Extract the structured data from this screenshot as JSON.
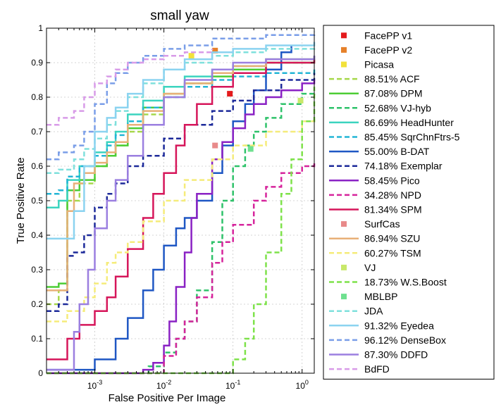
{
  "chart_data": {
    "type": "line",
    "title": "small yaw",
    "xlabel": "False Positive Per Image",
    "ylabel": "True Positive Rate",
    "xscale": "log",
    "xlim": [
      0.0002,
      1.5
    ],
    "ylim": [
      0,
      1
    ],
    "grid": true,
    "legend_position": "right",
    "x_ticks": [
      {
        "value": 0.001,
        "base": "10",
        "exp": "-3"
      },
      {
        "value": 0.01,
        "base": "10",
        "exp": "-2"
      },
      {
        "value": 0.1,
        "base": "10",
        "exp": "-1"
      },
      {
        "value": 1,
        "base": "10",
        "exp": "0"
      }
    ],
    "y_ticks": [
      {
        "value": 0,
        "label": "0"
      },
      {
        "value": 0.1,
        "label": "0.1"
      },
      {
        "value": 0.2,
        "label": "0.2"
      },
      {
        "value": 0.3,
        "label": "0.3"
      },
      {
        "value": 0.4,
        "label": "0.4"
      },
      {
        "value": 0.5,
        "label": "0.5"
      },
      {
        "value": 0.6,
        "label": "0.6"
      },
      {
        "value": 0.7,
        "label": "0.7"
      },
      {
        "value": 0.8,
        "label": "0.8"
      },
      {
        "value": 0.9,
        "label": "0.9"
      },
      {
        "value": 1,
        "label": "1"
      }
    ],
    "series": [
      {
        "name": "FacePP v1",
        "kind": "point",
        "color": "#e41a1c",
        "x": [
          0.09
        ],
        "y": [
          0.81
        ]
      },
      {
        "name": "FacePP v2",
        "kind": "point",
        "color": "#e6812a",
        "x": [
          0.055
        ],
        "y": [
          0.935
        ]
      },
      {
        "name": "Picasa",
        "kind": "point",
        "color": "#f2e13a",
        "x": [
          0.025
        ],
        "y": [
          0.92
        ]
      },
      {
        "name": "88.51% ACF",
        "kind": "line",
        "color": "#a6d84a",
        "dash": "dashed",
        "x": [
          0.0002,
          0.0003,
          0.0004,
          0.0006,
          0.001,
          0.0015,
          0.002,
          0.003,
          0.005,
          0.01,
          0.02,
          0.05,
          0.1,
          0.3,
          1.5
        ],
        "y": [
          0.2,
          0.24,
          0.5,
          0.55,
          0.6,
          0.63,
          0.66,
          0.7,
          0.75,
          0.8,
          0.84,
          0.87,
          0.89,
          0.9,
          0.91
        ]
      },
      {
        "name": "87.08% DPM",
        "kind": "line",
        "color": "#4ccd35",
        "dash": "solid",
        "x": [
          0.0002,
          0.0003,
          0.0004,
          0.0006,
          0.001,
          0.0015,
          0.002,
          0.003,
          0.005,
          0.01,
          0.02,
          0.05,
          0.1,
          0.3,
          1.5
        ],
        "y": [
          0.25,
          0.26,
          0.53,
          0.56,
          0.6,
          0.63,
          0.66,
          0.71,
          0.77,
          0.81,
          0.84,
          0.86,
          0.88,
          0.9,
          0.91
        ]
      },
      {
        "name": "52.68% VJ-hyb",
        "kind": "line",
        "color": "#2ec26a",
        "dash": "dashed",
        "x": [
          0.0002,
          0.001,
          0.003,
          0.006,
          0.01,
          0.015,
          0.02,
          0.03,
          0.05,
          0.07,
          0.1,
          0.15,
          0.2,
          0.3,
          0.5,
          1,
          1.5
        ],
        "y": [
          0,
          0,
          0,
          0.02,
          0.06,
          0.1,
          0.15,
          0.24,
          0.38,
          0.5,
          0.6,
          0.66,
          0.7,
          0.74,
          0.78,
          0.81,
          0.82
        ]
      },
      {
        "name": "86.69% HeadHunter",
        "kind": "line",
        "color": "#3bd4bf",
        "dash": "solid",
        "x": [
          0.0002,
          0.0003,
          0.0004,
          0.0006,
          0.001,
          0.0015,
          0.002,
          0.003,
          0.005,
          0.01,
          0.02,
          0.05,
          0.1,
          0.3,
          1.5
        ],
        "y": [
          0.48,
          0.5,
          0.56,
          0.6,
          0.64,
          0.67,
          0.7,
          0.75,
          0.79,
          0.83,
          0.86,
          0.88,
          0.89,
          0.91,
          0.92
        ]
      },
      {
        "name": "85.45% SqrChnFtrs-5",
        "kind": "line",
        "color": "#22b5d6",
        "dash": "dashed",
        "x": [
          0.0002,
          0.0003,
          0.0004,
          0.0006,
          0.001,
          0.0015,
          0.002,
          0.003,
          0.005,
          0.01,
          0.02,
          0.05,
          0.1,
          0.3,
          1.5
        ],
        "y": [
          0.52,
          0.53,
          0.57,
          0.6,
          0.63,
          0.66,
          0.69,
          0.73,
          0.77,
          0.8,
          0.83,
          0.85,
          0.86,
          0.87,
          0.88
        ]
      },
      {
        "name": "55.00% B-DAT",
        "kind": "line",
        "color": "#1f57c4",
        "dash": "solid",
        "x": [
          0.0002,
          0.0005,
          0.001,
          0.002,
          0.003,
          0.005,
          0.007,
          0.01,
          0.015,
          0.02,
          0.03,
          0.05,
          0.07,
          0.1,
          0.15,
          0.2,
          0.3,
          0.5,
          0.7
        ],
        "y": [
          0.01,
          0.01,
          0.04,
          0.1,
          0.16,
          0.24,
          0.3,
          0.37,
          0.42,
          0.45,
          0.5,
          0.58,
          0.66,
          0.73,
          0.78,
          0.82,
          0.88,
          0.93,
          0.95
        ]
      },
      {
        "name": "74.18% Exemplar",
        "kind": "line",
        "color": "#1d2a9a",
        "dash": "dashed",
        "x": [
          0.0002,
          0.0003,
          0.0004,
          0.0005,
          0.0007,
          0.001,
          0.0015,
          0.002,
          0.003,
          0.005,
          0.01,
          0.02,
          0.05,
          0.1,
          0.2,
          0.5,
          1.5
        ],
        "y": [
          0.18,
          0.2,
          0.34,
          0.35,
          0.4,
          0.48,
          0.52,
          0.55,
          0.6,
          0.63,
          0.68,
          0.72,
          0.76,
          0.79,
          0.82,
          0.85,
          0.87
        ]
      },
      {
        "name": "58.45% Pico",
        "kind": "line",
        "color": "#8a22c4",
        "dash": "solid",
        "x": [
          0.0002,
          0.003,
          0.005,
          0.007,
          0.01,
          0.012,
          0.015,
          0.02,
          0.025,
          0.03,
          0.05,
          0.07,
          0.1,
          0.15,
          0.2,
          0.3,
          0.5,
          1,
          1.5
        ],
        "y": [
          0,
          0,
          0.01,
          0.03,
          0.08,
          0.15,
          0.25,
          0.35,
          0.45,
          0.52,
          0.62,
          0.67,
          0.71,
          0.75,
          0.78,
          0.8,
          0.82,
          0.84,
          0.85
        ]
      },
      {
        "name": "34.28% NPD",
        "kind": "line",
        "color": "#d6249c",
        "dash": "dashed",
        "x": [
          0.0002,
          0.005,
          0.01,
          0.015,
          0.02,
          0.03,
          0.05,
          0.07,
          0.1,
          0.2,
          0.3,
          0.5,
          1,
          1.5
        ],
        "y": [
          0,
          0,
          0.05,
          0.1,
          0.15,
          0.22,
          0.32,
          0.38,
          0.43,
          0.5,
          0.54,
          0.58,
          0.6,
          0.61
        ]
      },
      {
        "name": "81.34% SPM",
        "kind": "line",
        "color": "#d6165a",
        "dash": "solid",
        "x": [
          0.0002,
          0.0003,
          0.0004,
          0.0006,
          0.001,
          0.0015,
          0.002,
          0.003,
          0.005,
          0.007,
          0.01,
          0.015,
          0.02,
          0.03,
          0.05,
          0.1,
          0.3,
          1.5
        ],
        "y": [
          0.04,
          0.04,
          0.1,
          0.14,
          0.18,
          0.22,
          0.28,
          0.36,
          0.45,
          0.52,
          0.58,
          0.66,
          0.72,
          0.78,
          0.83,
          0.87,
          0.9,
          0.91
        ]
      },
      {
        "name": "SurfCas",
        "kind": "point",
        "color": "#e88a8a",
        "x": [
          0.055
        ],
        "y": [
          0.66
        ]
      },
      {
        "name": "86.94% SZU",
        "kind": "line",
        "color": "#e8b078",
        "dash": "solid",
        "x": [
          0.0002,
          0.0003,
          0.0004,
          0.0005,
          0.0007,
          0.001,
          0.0015,
          0.002,
          0.003,
          0.005,
          0.01,
          0.02,
          0.05,
          0.1,
          0.3,
          1.5
        ],
        "y": [
          0.24,
          0.24,
          0.47,
          0.55,
          0.58,
          0.61,
          0.64,
          0.67,
          0.72,
          0.76,
          0.81,
          0.84,
          0.87,
          0.89,
          0.91,
          0.92
        ]
      },
      {
        "name": "60.27% TSM",
        "kind": "line",
        "color": "#f5ec7a",
        "dash": "dashed",
        "x": [
          0.0002,
          0.0004,
          0.0007,
          0.001,
          0.0015,
          0.002,
          0.003,
          0.005,
          0.01,
          0.02,
          0.05,
          0.1,
          0.3,
          1,
          1.5
        ],
        "y": [
          0.15,
          0.18,
          0.22,
          0.26,
          0.32,
          0.35,
          0.38,
          0.44,
          0.5,
          0.56,
          0.62,
          0.66,
          0.7,
          0.73,
          0.74
        ]
      },
      {
        "name": "VJ",
        "kind": "point",
        "color": "#c8e86a",
        "x": [
          0.95
        ],
        "y": [
          0.79
        ]
      },
      {
        "name": "18.73% W.S.Boost",
        "kind": "line",
        "color": "#7ee24a",
        "dash": "dashed",
        "x": [
          0.0002,
          0.05,
          0.1,
          0.15,
          0.2,
          0.3,
          0.5,
          0.7,
          1,
          1.5
        ],
        "y": [
          0,
          0,
          0.04,
          0.1,
          0.2,
          0.35,
          0.52,
          0.62,
          0.73,
          0.83
        ]
      },
      {
        "name": "MBLBP",
        "kind": "point",
        "color": "#6fe08f",
        "x": [
          0.18
        ],
        "y": [
          0.65
        ]
      },
      {
        "name": "JDA",
        "kind": "line",
        "color": "#7fe0dc",
        "dash": "dashed",
        "x": [
          0.0002,
          0.0003,
          0.0005,
          0.0007,
          0.001,
          0.0015,
          0.002,
          0.003,
          0.005,
          0.01,
          0.02,
          0.05,
          0.1,
          0.3,
          1.5
        ],
        "y": [
          0.58,
          0.59,
          0.62,
          0.65,
          0.68,
          0.72,
          0.76,
          0.8,
          0.84,
          0.88,
          0.9,
          0.92,
          0.93,
          0.94,
          0.95
        ]
      },
      {
        "name": "91.32% Eyedea",
        "kind": "line",
        "color": "#8bd3f0",
        "dash": "solid",
        "x": [
          0.0002,
          0.0003,
          0.0005,
          0.0007,
          0.001,
          0.0015,
          0.002,
          0.003,
          0.005,
          0.01,
          0.02,
          0.05,
          0.1,
          0.3,
          1.5
        ],
        "y": [
          0.39,
          0.39,
          0.47,
          0.6,
          0.7,
          0.74,
          0.77,
          0.81,
          0.85,
          0.88,
          0.91,
          0.93,
          0.94,
          0.95,
          0.96
        ]
      },
      {
        "name": "96.12% DenseBox",
        "kind": "line",
        "color": "#7a9ee8",
        "dash": "dashed",
        "x": [
          0.0002,
          0.0003,
          0.0005,
          0.0007,
          0.001,
          0.0015,
          0.002,
          0.003,
          0.005,
          0.01,
          0.02,
          0.05,
          0.1,
          0.3,
          1.5
        ],
        "y": [
          0.62,
          0.64,
          0.66,
          0.7,
          0.78,
          0.84,
          0.87,
          0.9,
          0.92,
          0.94,
          0.95,
          0.97,
          0.97,
          0.98,
          0.99
        ]
      },
      {
        "name": "87.30% DDFD",
        "kind": "line",
        "color": "#9b7fe0",
        "dash": "solid",
        "x": [
          0.0002,
          0.0004,
          0.0005,
          0.0006,
          0.0008,
          0.001,
          0.0015,
          0.002,
          0.003,
          0.005,
          0.01,
          0.02,
          0.05,
          0.1,
          0.3,
          1.5
        ],
        "y": [
          0.01,
          0.01,
          0.12,
          0.2,
          0.3,
          0.42,
          0.5,
          0.56,
          0.63,
          0.72,
          0.8,
          0.85,
          0.88,
          0.9,
          0.91,
          0.92
        ]
      },
      {
        "name": "BdFD",
        "kind": "line",
        "color": "#d89be8",
        "dash": "dashed",
        "x": [
          0.0002,
          0.0003,
          0.0005,
          0.0007,
          0.001,
          0.0015,
          0.002,
          0.003,
          0.005,
          0.01,
          0.02,
          0.05
        ],
        "y": [
          0.72,
          0.74,
          0.76,
          0.8,
          0.84,
          0.86,
          0.88,
          0.9,
          0.91,
          0.92,
          0.93,
          0.94
        ]
      }
    ]
  }
}
